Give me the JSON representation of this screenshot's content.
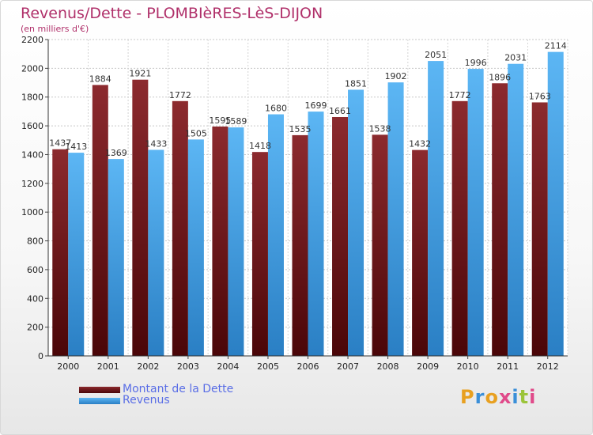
{
  "header": {
    "title": "Revenus/Dette - PLOMBIèRES-LèS-DIJON",
    "subtitle": "(en milliers d'€)"
  },
  "legend": {
    "items": [
      {
        "label": "Montant de la Dette",
        "color": "#6e1518"
      },
      {
        "label": "Revenus",
        "color": "#3d9ae6"
      }
    ]
  },
  "logo": {
    "text": "Proxiti"
  },
  "colors": {
    "dette": "#6e1518",
    "revenus": "#3d9ae6",
    "title": "#b0306a",
    "legend_text": "#5a6ee6"
  },
  "chart_data": {
    "type": "bar",
    "categories": [
      "2000",
      "2001",
      "2002",
      "2003",
      "2004",
      "2005",
      "2006",
      "2007",
      "2008",
      "2009",
      "2010",
      "2011",
      "2012"
    ],
    "series": [
      {
        "name": "Montant de la Dette",
        "values": [
          1437,
          1884,
          1921,
          1772,
          1595,
          1418,
          1535,
          1661,
          1538,
          1432,
          1772,
          1896,
          1763
        ]
      },
      {
        "name": "Revenus",
        "values": [
          1413,
          1369,
          1433,
          1505,
          1589,
          1680,
          1699,
          1851,
          1902,
          2051,
          1996,
          2031,
          2114
        ]
      }
    ],
    "value_labels": [
      [
        "1437",
        "1884",
        "1921",
        "1772",
        "1595",
        "1418",
        "1535",
        "1661",
        "1538",
        "1432",
        "1772",
        "1896",
        "1763"
      ],
      [
        "1413",
        "1369",
        "1433",
        "1505",
        "1589",
        "1680",
        "1699",
        "1851",
        "1902",
        "2051",
        "1996",
        "2031",
        "2114"
      ]
    ],
    "yticks": [
      "0",
      "200",
      "400",
      "600",
      "800",
      "1000",
      "1200",
      "1400",
      "1600",
      "1800",
      "2000",
      "2200"
    ],
    "ylim": [
      0,
      2200
    ],
    "grid": true,
    "legend_position": "bottom-left"
  }
}
